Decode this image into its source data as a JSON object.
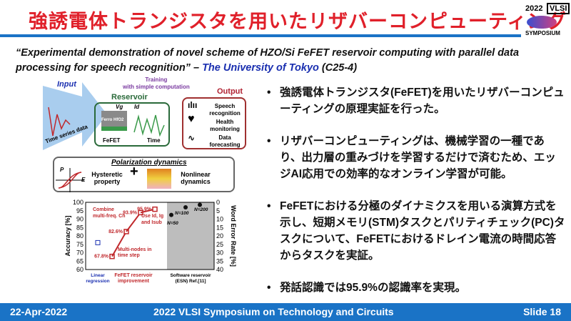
{
  "title": "強誘電体トランジスタを用いたリザバーコンピューティング",
  "logo": {
    "year": "2022",
    "brand": "VLSI",
    "text": "SYMPOSIUM"
  },
  "quote": {
    "text": "“Experimental demonstration of novel scheme of HZO/Si FeFET reservoir computing with parallel data processing for speech recognition” – ",
    "affiliation": "The University of Tokyo",
    "code": " (C25-4)"
  },
  "figure": {
    "input": "Input",
    "time_series": "Time series data",
    "reservoir": "Reservoir",
    "vg": "Vg",
    "id": "Id",
    "ferro": "Ferro HfO2",
    "fefet": "FeFET",
    "time": "Time",
    "training": "Training\nwith simple computation",
    "output": "Output",
    "outputs": [
      "Speech recognition",
      "Health monitoring",
      "Data forecasting"
    ],
    "polarization": "Polarization dynamics",
    "hysteretic": "Hysteretic property",
    "nonlinear": "Nonlinear dynamics",
    "p": "P",
    "e": "E"
  },
  "chart_data": {
    "type": "scatter",
    "ylabel": "Accuracy [%]",
    "y2label": "Word Error Rate [%]",
    "ylim": [
      60,
      100
    ],
    "y2lim": [
      40,
      0
    ],
    "yticks": [
      100,
      95,
      90,
      85,
      80,
      75,
      70,
      65,
      60
    ],
    "y2ticks": [
      0,
      5,
      10,
      15,
      20,
      25,
      30,
      35,
      40
    ],
    "linear": {
      "label": "Linear regression",
      "value": 76,
      "color": "#1a2fb0"
    },
    "fefet": {
      "label": "FeFET reservoir improvement",
      "values": [
        67.8,
        82.6,
        93.9,
        95.9
      ],
      "labels": [
        "67.8%",
        "82.6%",
        "93.9%",
        "95.9%"
      ],
      "color": "#c0282c"
    },
    "software": {
      "label": "Software reservoir (ESN) Ref.[11]",
      "points": [
        {
          "n": "N=50",
          "value": 92.5
        },
        {
          "n": "N=100",
          "value": 97
        },
        {
          "n": "N=200",
          "value": 98.5
        }
      ]
    },
    "annotations": [
      "Multi-nodes in time step",
      "Combine multi-freq. Ch",
      "Use Id, Ig and Isub"
    ]
  },
  "bullets": [
    "強誘電体トランジスタ(FeFET)を用いたリザバーコンピューティングの原理実証を行った。",
    "リザバーコンピューティングは、機械学習の一種であり、出力層の重みづけを学習するだけで済むため、エッジAI応用での効率的なオンライン学習が可能。",
    "FeFETにおける分極のダイナミクスを用いる演算方式を示し、短期メモリ(STM)タスクとパリティチェック(PC)タスクについて、FeFETにおけるドレイン電流の時間応答からタスクを実証。",
    "発話認識では95.9%の認識率を実現。"
  ],
  "footer": {
    "date": "22-Apr-2022",
    "event": "2022 VLSI Symposium on Technology and Circuits",
    "slide": "Slide 18"
  }
}
